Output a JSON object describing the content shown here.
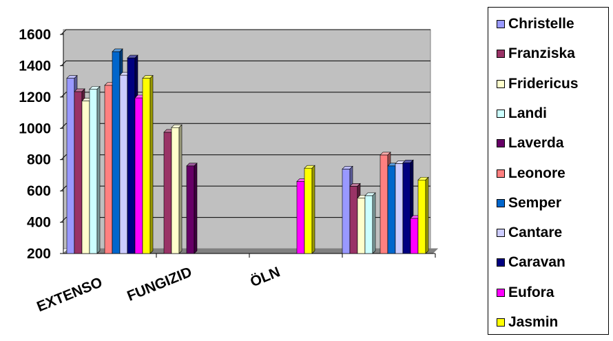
{
  "chart_data": {
    "type": "bar",
    "style": "3d-clustered-column",
    "title": "",
    "xlabel": "",
    "ylabel": "",
    "categories": [
      "EXTENSO",
      "FUNGIZID",
      "ÖLN",
      ""
    ],
    "ylim": [
      200,
      1600
    ],
    "yticks": [
      "200",
      "400",
      "600",
      "800",
      "1000",
      "1200",
      "1400",
      "1600"
    ],
    "grid": true,
    "plot_background": "#c0c0c0",
    "legend_position": "right",
    "series": [
      {
        "name": "Christelle",
        "color": "#9999ff",
        "values": [
          1320,
          null,
          null,
          740
        ]
      },
      {
        "name": "Franziska",
        "color": "#993366",
        "values": [
          1235,
          975,
          null,
          630
        ]
      },
      {
        "name": "Fridericus",
        "color": "#ffffcc",
        "values": [
          1175,
          1005,
          null,
          555
        ]
      },
      {
        "name": "Landi",
        "color": "#ccffff",
        "values": [
          1250,
          null,
          null,
          570
        ]
      },
      {
        "name": "Laverda",
        "color": "#660066",
        "values": [
          null,
          760,
          null,
          null
        ]
      },
      {
        "name": "Leonore",
        "color": "#ff8080",
        "values": [
          1275,
          null,
          null,
          830
        ]
      },
      {
        "name": "Semper",
        "color": "#0066cc",
        "values": [
          1490,
          null,
          null,
          760
        ]
      },
      {
        "name": "Cantare",
        "color": "#ccccff",
        "values": [
          1340,
          null,
          null,
          775
        ]
      },
      {
        "name": "Caravan",
        "color": "#000080",
        "values": [
          1450,
          null,
          null,
          780
        ]
      },
      {
        "name": "Eufora",
        "color": "#ff00ff",
        "values": [
          1195,
          null,
          660,
          425
        ]
      },
      {
        "name": "Jasmin",
        "color": "#ffff00",
        "values": [
          1320,
          null,
          745,
          670
        ]
      }
    ]
  }
}
